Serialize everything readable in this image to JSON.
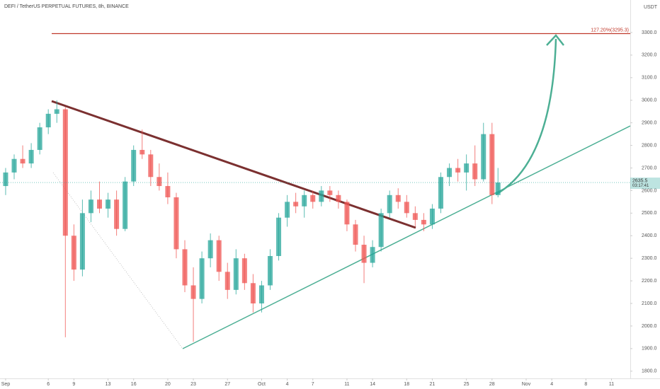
{
  "chart_data": {
    "type": "candlestick",
    "title": "DEFI / TetherUS PERPETUAL FUTURES, 8h, BINANCE",
    "currency": "USDT",
    "up_color": "#26a69a",
    "down_color": "#ef5350",
    "x": [
      0,
      1,
      2,
      3,
      4,
      5,
      6,
      7,
      8,
      9,
      10,
      11,
      12,
      13,
      14,
      15,
      16,
      17,
      18,
      19,
      20,
      21,
      22,
      23,
      24,
      25,
      26,
      27,
      28,
      29,
      30,
      31,
      32,
      33,
      34,
      35,
      36,
      37,
      38,
      39,
      40,
      41,
      42,
      43,
      44,
      45,
      46,
      47,
      48,
      49,
      50,
      51,
      52,
      53,
      54,
      55,
      56,
      57,
      57.7
    ],
    "open": [
      2620,
      2680,
      2740,
      2720,
      2780,
      2880,
      2940,
      2960,
      2400,
      2250,
      2500,
      2560,
      2520,
      2560,
      2430,
      2640,
      2780,
      2760,
      2660,
      2620,
      2570,
      2340,
      2180,
      2120,
      2300,
      2380,
      2240,
      2160,
      2300,
      2190,
      2100,
      2180,
      2310,
      2480,
      2550,
      2530,
      2580,
      2550,
      2600,
      2580,
      2550,
      2450,
      2360,
      2280,
      2350,
      2500,
      2580,
      2550,
      2500,
      2470,
      2450,
      2520,
      2660,
      2700,
      2680,
      2720,
      2650,
      2850,
      2580
    ],
    "high": [
      2700,
      2760,
      2800,
      2810,
      2900,
      2960,
      3000,
      2970,
      2450,
      2560,
      2600,
      2640,
      2590,
      2600,
      2660,
      2800,
      2870,
      2780,
      2720,
      2680,
      2590,
      2380,
      2260,
      2330,
      2410,
      2400,
      2280,
      2340,
      2320,
      2230,
      2200,
      2340,
      2500,
      2580,
      2590,
      2600,
      2600,
      2620,
      2620,
      2600,
      2560,
      2470,
      2400,
      2380,
      2520,
      2600,
      2610,
      2580,
      2530,
      2500,
      2540,
      2680,
      2720,
      2740,
      2760,
      2800,
      2900,
      2900,
      2700
    ],
    "low": [
      2580,
      2650,
      2700,
      2700,
      2760,
      2850,
      2900,
      1950,
      2200,
      2220,
      2460,
      2500,
      2480,
      2400,
      2420,
      2620,
      2740,
      2620,
      2600,
      2540,
      2300,
      2150,
      1930,
      2100,
      2260,
      2200,
      2120,
      2140,
      2160,
      2060,
      2060,
      2160,
      2290,
      2440,
      2500,
      2480,
      2520,
      2530,
      2550,
      2520,
      2420,
      2330,
      2190,
      2260,
      2330,
      2480,
      2520,
      2480,
      2440,
      2420,
      2430,
      2500,
      2620,
      2640,
      2600,
      2620,
      2640,
      2540,
      2570
    ],
    "close": [
      2680,
      2740,
      2720,
      2780,
      2880,
      2940,
      2960,
      2400,
      2250,
      2500,
      2560,
      2520,
      2560,
      2430,
      2640,
      2780,
      2760,
      2660,
      2620,
      2570,
      2340,
      2180,
      2120,
      2300,
      2380,
      2240,
      2160,
      2300,
      2190,
      2100,
      2180,
      2310,
      2480,
      2550,
      2530,
      2580,
      2550,
      2600,
      2580,
      2550,
      2450,
      2360,
      2280,
      2350,
      2500,
      2580,
      2550,
      2500,
      2470,
      2450,
      2520,
      2660,
      2700,
      2680,
      2720,
      2650,
      2850,
      2580,
      2635.5
    ],
    "xlim": [
      -0.66,
      73.2
    ],
    "ylim": [
      1768,
      3444
    ],
    "xticks": [
      {
        "value": 0,
        "label": "Sep"
      },
      {
        "value": 5,
        "label": "6"
      },
      {
        "value": 8,
        "label": "9"
      },
      {
        "value": 12,
        "label": "13"
      },
      {
        "value": 15,
        "label": "16"
      },
      {
        "value": 19,
        "label": "20"
      },
      {
        "value": 22,
        "label": "23"
      },
      {
        "value": 26,
        "label": "27"
      },
      {
        "value": 30,
        "label": "Oct"
      },
      {
        "value": 33,
        "label": "4"
      },
      {
        "value": 36,
        "label": "7"
      },
      {
        "value": 40,
        "label": "11"
      },
      {
        "value": 43,
        "label": "14"
      },
      {
        "value": 47,
        "label": "18"
      },
      {
        "value": 50,
        "label": "21"
      },
      {
        "value": 54,
        "label": "25"
      },
      {
        "value": 57,
        "label": "28"
      },
      {
        "value": 61,
        "label": "Nov"
      },
      {
        "value": 64,
        "label": "4"
      },
      {
        "value": 68,
        "label": "8"
      },
      {
        "value": 71,
        "label": "11"
      }
    ],
    "yticks": [
      {
        "value": 1800,
        "label": "1800.0"
      },
      {
        "value": 1900,
        "label": "1900.0"
      },
      {
        "value": 2000,
        "label": "2000.0"
      },
      {
        "value": 2100,
        "label": "2100.0"
      },
      {
        "value": 2200,
        "label": "2200.0"
      },
      {
        "value": 2300,
        "label": "2300.0"
      },
      {
        "value": 2400,
        "label": "2400.0"
      },
      {
        "value": 2500,
        "label": "2500.0"
      },
      {
        "value": 2600,
        "label": "2600.0"
      },
      {
        "value": 2700,
        "label": "2700.0"
      },
      {
        "value": 2800,
        "label": "2800.0"
      },
      {
        "value": 2900,
        "label": "2900.0"
      },
      {
        "value": 3000,
        "label": "3000.0"
      },
      {
        "value": 3100,
        "label": "3100.0"
      },
      {
        "value": 3200,
        "label": "3200.0"
      },
      {
        "value": 3300,
        "label": "3300.0"
      }
    ],
    "fib_level": {
      "value": 3295.3,
      "label": "127.20%(3295.3)",
      "color": "#c0392b"
    },
    "current_price": 2635.5,
    "countdown": "03:17:41"
  }
}
